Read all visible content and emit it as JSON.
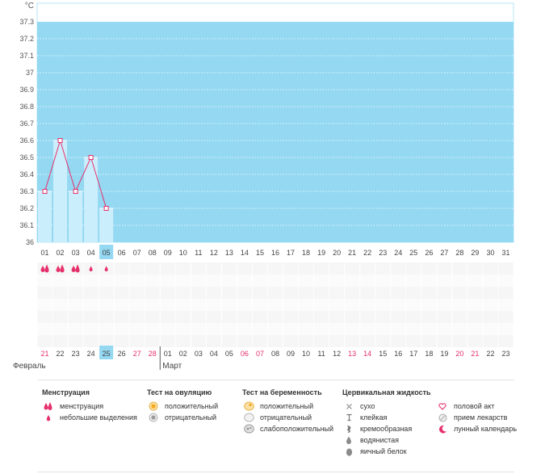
{
  "chart_data": {
    "type": "line",
    "ylabel": "°C",
    "ylim": [
      36,
      37.35
    ],
    "y_ticks": [
      "37.3",
      "37.2",
      "37.1",
      "37",
      "36.9",
      "36.8",
      "36.7",
      "36.6",
      "36.5",
      "36.4",
      "36.3",
      "36.2",
      "36.1",
      "36"
    ],
    "cycle_days": [
      "01",
      "02",
      "03",
      "04",
      "05",
      "06",
      "07",
      "08",
      "09",
      "10",
      "11",
      "12",
      "13",
      "14",
      "15",
      "16",
      "17",
      "18",
      "19",
      "20",
      "21",
      "22",
      "23",
      "24",
      "25",
      "26",
      "27",
      "28",
      "29",
      "30",
      "31"
    ],
    "current_cycle_day": "05",
    "series": [
      {
        "values": [
          36.3,
          36.6,
          36.3,
          36.5,
          36.2
        ]
      }
    ],
    "bar_top": 37.3,
    "colors": {
      "background": "#94d8f2",
      "line": "#e6306c",
      "bars": "#cbeefc",
      "current_day": "#94d8f2"
    }
  },
  "menstruation_marks": [
    "heavy",
    "heavy",
    "heavy",
    "light",
    "light"
  ],
  "dates": [
    {
      "d": "21",
      "red": true
    },
    {
      "d": "22",
      "red": false
    },
    {
      "d": "23",
      "red": false
    },
    {
      "d": "24",
      "red": false
    },
    {
      "d": "25",
      "red": false,
      "today": true
    },
    {
      "d": "26",
      "red": false
    },
    {
      "d": "27",
      "red": true
    },
    {
      "d": "28",
      "red": true
    },
    {
      "d": "01",
      "red": false
    },
    {
      "d": "02",
      "red": false
    },
    {
      "d": "03",
      "red": false
    },
    {
      "d": "04",
      "red": false
    },
    {
      "d": "05",
      "red": false
    },
    {
      "d": "06",
      "red": true
    },
    {
      "d": "07",
      "red": true
    },
    {
      "d": "08",
      "red": false
    },
    {
      "d": "09",
      "red": false
    },
    {
      "d": "10",
      "red": false
    },
    {
      "d": "11",
      "red": false
    },
    {
      "d": "12",
      "red": false
    },
    {
      "d": "13",
      "red": true
    },
    {
      "d": "14",
      "red": true
    },
    {
      "d": "15",
      "red": false
    },
    {
      "d": "16",
      "red": false
    },
    {
      "d": "17",
      "red": false
    },
    {
      "d": "18",
      "red": false
    },
    {
      "d": "19",
      "red": false
    },
    {
      "d": "20",
      "red": true
    },
    {
      "d": "21",
      "red": true
    },
    {
      "d": "22",
      "red": false
    },
    {
      "d": "23",
      "red": false
    }
  ],
  "months": {
    "first": "Февраль",
    "second": "Март"
  },
  "legend": {
    "menstruation": {
      "title": "Менструация",
      "items": [
        {
          "label": "менструация",
          "icon": "drop-double-icon"
        },
        {
          "label": "небольшие выделения",
          "icon": "drop-small-icon"
        }
      ]
    },
    "ovulation": {
      "title": "Тест на овуляцию",
      "items": [
        {
          "label": "положительный",
          "icon": "ovulation-positive-icon"
        },
        {
          "label": "отрицательный",
          "icon": "ovulation-negative-icon"
        }
      ]
    },
    "pregnancy": {
      "title": "Тест на беременность",
      "items": [
        {
          "label": "положительный",
          "icon": "pregnancy-positive-icon"
        },
        {
          "label": "отрицательный",
          "icon": "pregnancy-negative-icon"
        },
        {
          "label": "слабоположительный",
          "icon": "pregnancy-weak-icon"
        }
      ]
    },
    "cervical": {
      "title": "Цервикальная жидкость",
      "items": [
        {
          "label": "сухо",
          "icon": "cross-icon"
        },
        {
          "label": "клейкая",
          "icon": "sticky-icon"
        },
        {
          "label": "кремообразная",
          "icon": "creamy-icon"
        },
        {
          "label": "водянистая",
          "icon": "watery-icon"
        },
        {
          "label": "яичный белок",
          "icon": "egg-white-icon"
        }
      ]
    },
    "other": {
      "items": [
        {
          "label": "половой акт",
          "icon": "heart-icon"
        },
        {
          "label": "прием лекарств",
          "icon": "pill-icon"
        },
        {
          "label": "лунный календарь",
          "icon": "moon-icon"
        }
      ]
    }
  }
}
